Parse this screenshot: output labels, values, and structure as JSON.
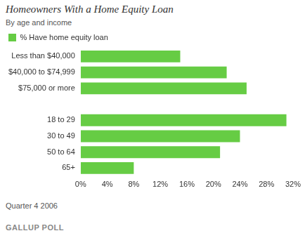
{
  "chart_data": {
    "type": "bar",
    "title": "Homeowners With a Home Equity Loan",
    "subtitle": "By age and income",
    "orientation": "horizontal",
    "categories": [
      "Less than $40,000",
      "$40,000 to $74,999",
      "$75,000 or more",
      null,
      "18 to 29",
      "30 to 49",
      "50 to 64",
      "65+"
    ],
    "series": [
      {
        "name": "% Have home equity loan",
        "color": "#66cc44",
        "values": [
          15,
          22,
          25,
          null,
          31,
          24,
          21,
          8
        ]
      }
    ],
    "xlim": [
      0,
      32
    ],
    "xticks": [
      {
        "value": 0,
        "label": "0%"
      },
      {
        "value": 4,
        "label": "4%"
      },
      {
        "value": 8,
        "label": "8%"
      },
      {
        "value": 12,
        "label": "12%"
      },
      {
        "value": 16,
        "label": "16%"
      },
      {
        "value": 20,
        "label": "20%"
      },
      {
        "value": 24,
        "label": "24%"
      },
      {
        "value": 28,
        "label": "28%"
      },
      {
        "value": 32,
        "label": "32%"
      }
    ],
    "grid": false,
    "legend": "top-left",
    "annotations": [
      "Quarter 4 2006",
      "GALLUP POLL"
    ]
  }
}
